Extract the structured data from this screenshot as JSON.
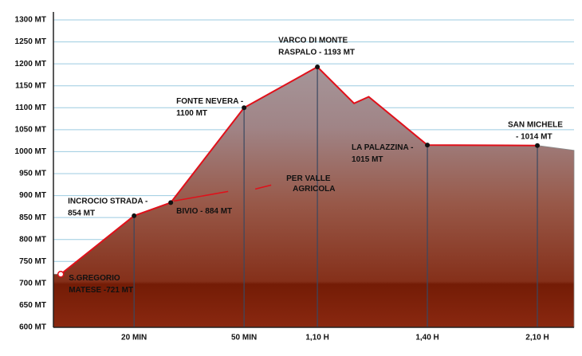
{
  "chart_data": {
    "type": "line",
    "x": [
      0,
      20,
      30,
      50,
      70,
      80,
      84,
      100,
      130,
      140
    ],
    "values": [
      721,
      854,
      884,
      1100,
      1193,
      1110,
      1125,
      1015,
      1014,
      1003
    ],
    "value_labels": [
      [
        "S.GREGORIO",
        "MATESE -721 MT"
      ],
      [
        "INCROCIO STRADA -",
        "854 MT"
      ],
      [
        "BIVIO - 884 MT"
      ],
      [
        "FONTE NEVERA -",
        "1100 MT"
      ],
      [
        "VARCO DI MONTE",
        "RASPALO - 1193 MT"
      ],
      null,
      null,
      [
        "LA PALAZZINA -",
        "1015 MT"
      ],
      [
        "SAN MICHELE",
        "- 1014 MT"
      ],
      null
    ],
    "annotations": [
      [
        "PER VALLE",
        "AGRICOLA"
      ]
    ],
    "color": "#e0101a",
    "xlim": [
      -2,
      140
    ],
    "xticks": [
      {
        "value": 20,
        "label": "20 MIN"
      },
      {
        "value": 50,
        "label": "50 MIN"
      },
      {
        "value": 70,
        "label": "1,10 H"
      },
      {
        "value": 100,
        "label": "1,40 H"
      },
      {
        "value": 130,
        "label": "2,10 H"
      }
    ],
    "ylim": [
      600,
      1300
    ],
    "yticks": [
      {
        "value": 600,
        "label": "600 MT"
      },
      {
        "value": 650,
        "label": "650 MT"
      },
      {
        "value": 700,
        "label": "700 MT"
      },
      {
        "value": 750,
        "label": "750 MT"
      },
      {
        "value": 800,
        "label": "800 MT"
      },
      {
        "value": 850,
        "label": "850 MT"
      },
      {
        "value": 900,
        "label": "900 MT"
      },
      {
        "value": 950,
        "label": "950 MT"
      },
      {
        "value": 1000,
        "label": "1000 MT"
      },
      {
        "value": 1050,
        "label": "1050 MT"
      },
      {
        "value": 1100,
        "label": "1100 MT"
      },
      {
        "value": 1150,
        "label": "1150 MT"
      },
      {
        "value": 1200,
        "label": "1200 MT"
      },
      {
        "value": 1250,
        "label": "1250 MT"
      },
      {
        "value": 1300,
        "label": "1300 MT"
      }
    ],
    "grid": true
  }
}
